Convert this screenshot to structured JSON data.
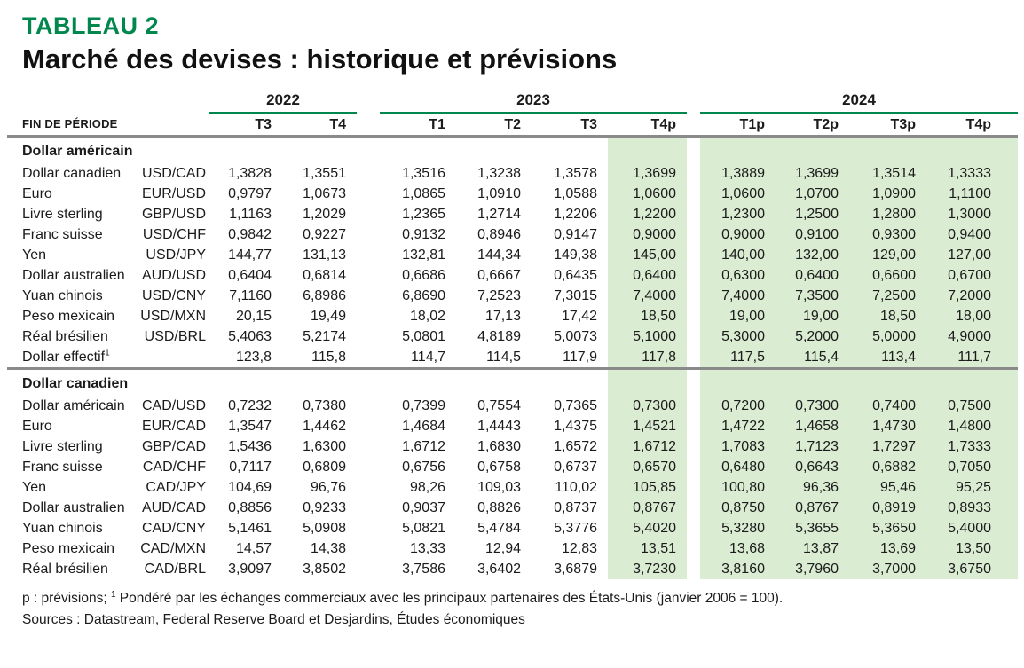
{
  "page": {
    "title": "TABLEAU 2",
    "subtitle": "Marché des devises : historique et prévisions",
    "period_label": "FIN DE PÉRIODE"
  },
  "colors": {
    "brand_green": "#00874E",
    "forecast_highlight": "#DAECD2",
    "rule_gray": "#8A8A8A",
    "text": "#1B1B1B"
  },
  "table": {
    "year_groups": [
      {
        "year": "2022",
        "quarters": [
          "T3",
          "T4"
        ]
      },
      {
        "year": "2023",
        "quarters": [
          "T1",
          "T2",
          "T3",
          "T4p"
        ]
      },
      {
        "year": "2024",
        "quarters": [
          "T1p",
          "T2p",
          "T3p",
          "T4p"
        ]
      }
    ],
    "highlight_value_indexes": [
      5,
      6,
      7,
      8,
      9
    ],
    "sections": [
      {
        "header": "Dollar américain",
        "rows": [
          {
            "label": "Dollar canadien",
            "pair": "USD/CAD",
            "values": [
              "1,3828",
              "1,3551",
              "1,3516",
              "1,3238",
              "1,3578",
              "1,3699",
              "1,3889",
              "1,3699",
              "1,3514",
              "1,3333"
            ]
          },
          {
            "label": "Euro",
            "pair": "EUR/USD",
            "values": [
              "0,9797",
              "1,0673",
              "1,0865",
              "1,0910",
              "1,0588",
              "1,0600",
              "1,0600",
              "1,0700",
              "1,0900",
              "1,1100"
            ]
          },
          {
            "label": "Livre sterling",
            "pair": "GBP/USD",
            "values": [
              "1,1163",
              "1,2029",
              "1,2365",
              "1,2714",
              "1,2206",
              "1,2200",
              "1,2300",
              "1,2500",
              "1,2800",
              "1,3000"
            ]
          },
          {
            "label": "Franc suisse",
            "pair": "USD/CHF",
            "values": [
              "0,9842",
              "0,9227",
              "0,9132",
              "0,8946",
              "0,9147",
              "0,9000",
              "0,9000",
              "0,9100",
              "0,9300",
              "0,9400"
            ]
          },
          {
            "label": "Yen",
            "pair": "USD/JPY",
            "values": [
              "144,77",
              "131,13",
              "132,81",
              "144,34",
              "149,38",
              "145,00",
              "140,00",
              "132,00",
              "129,00",
              "127,00"
            ]
          },
          {
            "label": "Dollar australien",
            "pair": "AUD/USD",
            "values": [
              "0,6404",
              "0,6814",
              "0,6686",
              "0,6667",
              "0,6435",
              "0,6400",
              "0,6300",
              "0,6400",
              "0,6600",
              "0,6700"
            ]
          },
          {
            "label": "Yuan chinois",
            "pair": "USD/CNY",
            "values": [
              "7,1160",
              "6,8986",
              "6,8690",
              "7,2523",
              "7,3015",
              "7,4000",
              "7,4000",
              "7,3500",
              "7,2500",
              "7,2000"
            ]
          },
          {
            "label": "Peso mexicain",
            "pair": "USD/MXN",
            "values": [
              "20,15",
              "19,49",
              "18,02",
              "17,13",
              "17,42",
              "18,50",
              "19,00",
              "19,00",
              "18,50",
              "18,00"
            ]
          },
          {
            "label": "Réal brésilien",
            "pair": "USD/BRL",
            "values": [
              "5,4063",
              "5,2174",
              "5,0801",
              "4,8189",
              "5,0073",
              "5,1000",
              "5,3000",
              "5,2000",
              "5,0000",
              "4,9000"
            ]
          },
          {
            "label": "Dollar effectif",
            "label_sup": "1",
            "pair": "",
            "values": [
              "123,8",
              "115,8",
              "114,7",
              "114,5",
              "117,9",
              "117,8",
              "117,5",
              "115,4",
              "113,4",
              "111,7"
            ]
          }
        ]
      },
      {
        "header": "Dollar canadien",
        "rows": [
          {
            "label": "Dollar américain",
            "pair": "CAD/USD",
            "values": [
              "0,7232",
              "0,7380",
              "0,7399",
              "0,7554",
              "0,7365",
              "0,7300",
              "0,7200",
              "0,7300",
              "0,7400",
              "0,7500"
            ]
          },
          {
            "label": "Euro",
            "pair": "EUR/CAD",
            "values": [
              "1,3547",
              "1,4462",
              "1,4684",
              "1,4443",
              "1,4375",
              "1,4521",
              "1,4722",
              "1,4658",
              "1,4730",
              "1,4800"
            ]
          },
          {
            "label": "Livre sterling",
            "pair": "GBP/CAD",
            "values": [
              "1,5436",
              "1,6300",
              "1,6712",
              "1,6830",
              "1,6572",
              "1,6712",
              "1,7083",
              "1,7123",
              "1,7297",
              "1,7333"
            ]
          },
          {
            "label": "Franc suisse",
            "pair": "CAD/CHF",
            "values": [
              "0,7117",
              "0,6809",
              "0,6756",
              "0,6758",
              "0,6737",
              "0,6570",
              "0,6480",
              "0,6643",
              "0,6882",
              "0,7050"
            ]
          },
          {
            "label": "Yen",
            "pair": "CAD/JPY",
            "values": [
              "104,69",
              "96,76",
              "98,26",
              "109,03",
              "110,02",
              "105,85",
              "100,80",
              "96,36",
              "95,46",
              "95,25"
            ]
          },
          {
            "label": "Dollar australien",
            "pair": "AUD/CAD",
            "values": [
              "0,8856",
              "0,9233",
              "0,9037",
              "0,8826",
              "0,8737",
              "0,8767",
              "0,8750",
              "0,8767",
              "0,8919",
              "0,8933"
            ]
          },
          {
            "label": "Yuan chinois",
            "pair": "CAD/CNY",
            "values": [
              "5,1461",
              "5,0908",
              "5,0821",
              "5,4784",
              "5,3776",
              "5,4020",
              "5,3280",
              "5,3655",
              "5,3650",
              "5,4000"
            ]
          },
          {
            "label": "Peso mexicain",
            "pair": "CAD/MXN",
            "values": [
              "14,57",
              "14,38",
              "13,33",
              "12,94",
              "12,83",
              "13,51",
              "13,68",
              "13,87",
              "13,69",
              "13,50"
            ]
          },
          {
            "label": "Réal brésilien",
            "pair": "CAD/BRL",
            "values": [
              "3,9097",
              "3,8502",
              "3,7586",
              "3,6402",
              "3,6879",
              "3,7230",
              "3,8160",
              "3,7960",
              "3,7000",
              "3,6750"
            ]
          }
        ]
      }
    ]
  },
  "footnotes": {
    "note_prefix": "p : prévisions; ",
    "note_sup": "1",
    "note_text": " Pondéré par les échanges commerciaux avec les principaux partenaires des États-Unis (janvier 2006 = 100).",
    "sources": "Sources : Datastream, Federal Reserve Board et Desjardins, Études économiques"
  }
}
